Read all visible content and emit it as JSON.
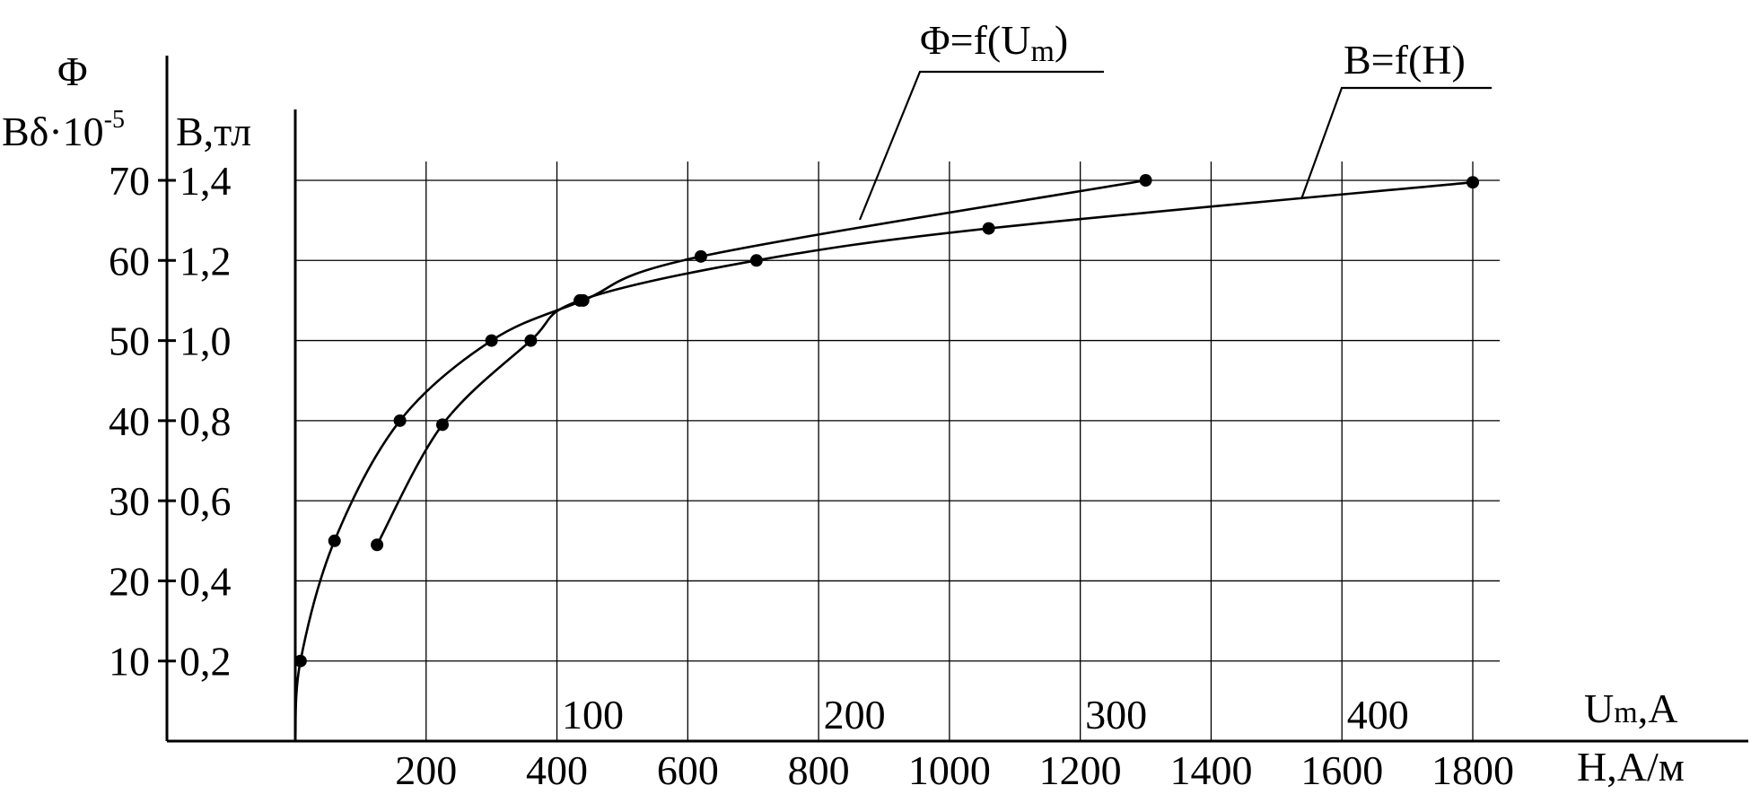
{
  "chart_data": {
    "type": "line",
    "left_axis_labels": {
      "flux_symbol": "Φ",
      "flux_label_base": "Bδ·10",
      "flux_label_exp": "-5",
      "induction_label": "B,тл"
    },
    "y_ticks_flux": [
      "10",
      "20",
      "30",
      "40",
      "50",
      "60",
      "70"
    ],
    "y_ticks_induction": [
      "0,2",
      "0,4",
      "0,6",
      "0,8",
      "1,0",
      "1,2",
      "1,4"
    ],
    "x_ticks_H": [
      "200",
      "400",
      "600",
      "800",
      "1000",
      "1200",
      "1400",
      "1600",
      "1800"
    ],
    "x_ticks_Um": [
      "100",
      "200",
      "300",
      "400"
    ],
    "x_label_Um_main": "U",
    "x_label_Um_sub": "m",
    "x_label_Um_tail": ",A",
    "x_label_H": "H,A/м",
    "ylim_induction": [
      0,
      1.4
    ],
    "ylim_flux": [
      0,
      70
    ],
    "xlim_H": [
      0,
      1800
    ],
    "xlim_Um": [
      0,
      450
    ],
    "grid": true,
    "series": [
      {
        "name": "Φ=f(Um)",
        "label_main": "Φ=f(U",
        "label_sub": "m",
        "label_tail": ")",
        "x_units": "Um",
        "points": [
          [
            2,
            10
          ],
          [
            15,
            25
          ],
          [
            40,
            40
          ],
          [
            75,
            50
          ],
          [
            110,
            55
          ],
          [
            155,
            60.5
          ],
          [
            325,
            70
          ]
        ]
      },
      {
        "name": "B=f(H)",
        "label_main": "B=f(H)",
        "x_units": "H",
        "points": [
          [
            125,
            0.49
          ],
          [
            225,
            0.79
          ],
          [
            360,
            1.0
          ],
          [
            435,
            1.1
          ],
          [
            705,
            1.2
          ],
          [
            1060,
            1.28
          ],
          [
            1800,
            1.395
          ]
        ]
      }
    ]
  }
}
